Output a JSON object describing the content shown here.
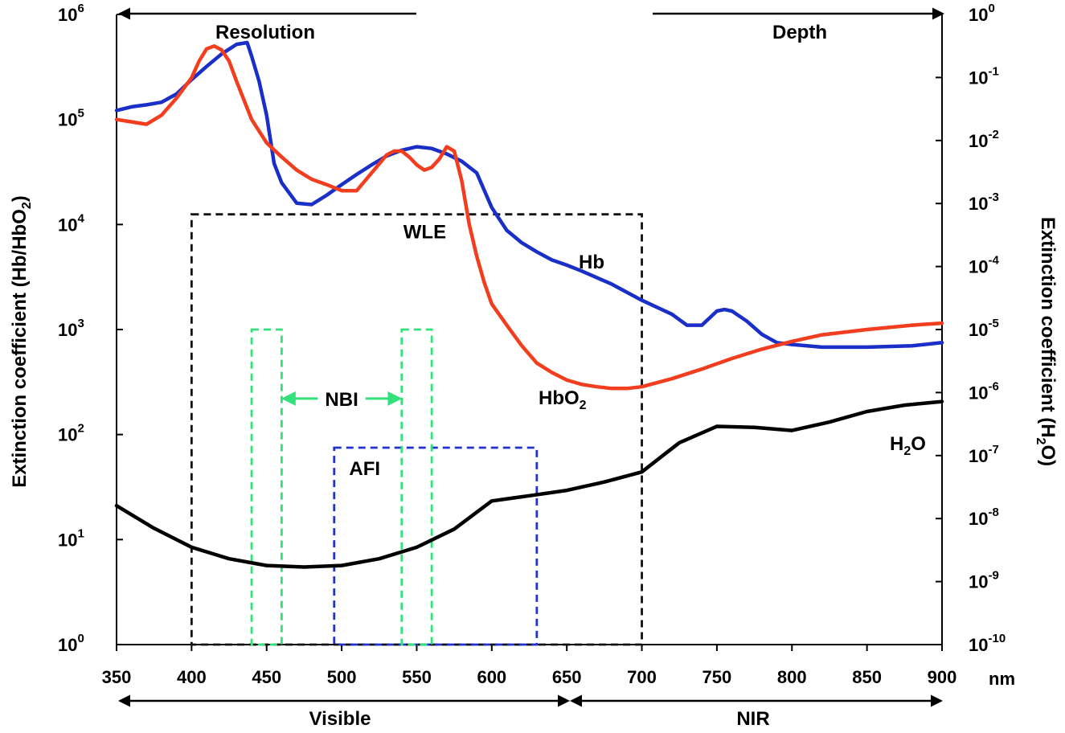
{
  "chart_data": {
    "type": "line",
    "x_unit": "nm",
    "x_ticks": [
      350,
      400,
      450,
      500,
      550,
      600,
      650,
      700,
      750,
      800,
      850,
      900
    ],
    "xlim": [
      350,
      900
    ],
    "y_left": {
      "label": "Extinction coefficient (Hb/HbO",
      "label_sub": "2",
      "label_end": ")",
      "scale": "log",
      "lim": [
        1,
        1000000
      ],
      "ticks": [
        {
          "base": "10",
          "exp": "0"
        },
        {
          "base": "10",
          "exp": "1"
        },
        {
          "base": "10",
          "exp": "2"
        },
        {
          "base": "10",
          "exp": "3"
        },
        {
          "base": "10",
          "exp": "4"
        },
        {
          "base": "10",
          "exp": "5"
        },
        {
          "base": "10",
          "exp": "6"
        }
      ]
    },
    "y_right": {
      "label": "Extinction coefficient (H",
      "label_sub": "2",
      "label_end": "O)",
      "scale": "log",
      "lim": [
        1e-10,
        1
      ],
      "ticks": [
        {
          "base": "10",
          "exp": "-10"
        },
        {
          "base": "10",
          "exp": "-9"
        },
        {
          "base": "10",
          "exp": "-8"
        },
        {
          "base": "10",
          "exp": "-7"
        },
        {
          "base": "10",
          "exp": "-6"
        },
        {
          "base": "10",
          "exp": "-5"
        },
        {
          "base": "10",
          "exp": "-4"
        },
        {
          "base": "10",
          "exp": "-3"
        },
        {
          "base": "10",
          "exp": "-2"
        },
        {
          "base": "10",
          "exp": "-1"
        },
        {
          "base": "10",
          "exp": "0"
        }
      ]
    },
    "series": [
      {
        "name": "Hb",
        "label_main": "Hb",
        "label_sub": "",
        "color": "#1a2ec8",
        "axis": "left",
        "x": [
          350,
          360,
          370,
          380,
          390,
          400,
          410,
          420,
          430,
          437,
          440,
          445,
          450,
          455,
          460,
          470,
          480,
          490,
          500,
          510,
          520,
          530,
          540,
          550,
          560,
          570,
          580,
          590,
          600,
          610,
          620,
          630,
          640,
          650,
          660,
          680,
          700,
          720,
          730,
          740,
          750,
          755,
          760,
          770,
          780,
          790,
          800,
          820,
          850,
          880,
          900
        ],
        "values": [
          122000,
          132000,
          138000,
          146000,
          175000,
          240000,
          320000,
          420000,
          520000,
          540000,
          400000,
          230000,
          110000,
          38000,
          25000,
          16000,
          15500,
          19000,
          24000,
          30000,
          37000,
          45000,
          51000,
          55000,
          53000,
          47000,
          40000,
          31000,
          14500,
          8800,
          6700,
          5500,
          4600,
          4100,
          3600,
          2700,
          1900,
          1400,
          1100,
          1100,
          1500,
          1550,
          1500,
          1200,
          900,
          750,
          720,
          680,
          680,
          700,
          750
        ]
      },
      {
        "name": "HbO2",
        "label_main": "HbO",
        "label_sub": "2",
        "color": "#f23d1e",
        "axis": "left",
        "x": [
          350,
          360,
          370,
          380,
          390,
          400,
          405,
          410,
          415,
          420,
          425,
          430,
          440,
          450,
          460,
          470,
          480,
          490,
          500,
          510,
          520,
          530,
          535,
          540,
          545,
          550,
          555,
          560,
          565,
          570,
          575,
          580,
          585,
          590,
          595,
          600,
          610,
          620,
          630,
          640,
          650,
          660,
          670,
          680,
          690,
          700,
          720,
          740,
          760,
          780,
          800,
          820,
          850,
          880,
          900
        ],
        "values": [
          100000,
          95000,
          90000,
          110000,
          160000,
          250000,
          360000,
          470000,
          500000,
          460000,
          360000,
          230000,
          100000,
          60000,
          44000,
          33000,
          27000,
          24000,
          21000,
          21000,
          31000,
          46000,
          50000,
          50000,
          44000,
          37000,
          33000,
          35000,
          42000,
          55000,
          50000,
          26000,
          10000,
          5000,
          2800,
          1750,
          1100,
          700,
          480,
          390,
          330,
          300,
          285,
          275,
          275,
          285,
          340,
          420,
          530,
          650,
          770,
          890,
          1000,
          1100,
          1150
        ]
      },
      {
        "name": "H2O",
        "label_main": "H",
        "label_sub": "2",
        "label_end": "O",
        "color": "#000000",
        "axis": "right",
        "x": [
          350,
          375,
          400,
          425,
          450,
          475,
          500,
          525,
          550,
          575,
          600,
          625,
          650,
          675,
          700,
          725,
          750,
          775,
          800,
          825,
          850,
          875,
          900
        ],
        "values": [
          1.6e-08,
          7e-09,
          3.5e-09,
          2.3e-09,
          1.8e-09,
          1.7e-09,
          1.8e-09,
          2.3e-09,
          3.5e-09,
          6.8e-09,
          1.9e-08,
          2.3e-08,
          2.8e-08,
          3.8e-08,
          5.5e-08,
          1.6e-07,
          2.9e-07,
          2.8e-07,
          2.5e-07,
          3.4e-07,
          5e-07,
          6.3e-07,
          7.2e-07
        ]
      }
    ],
    "boxes": [
      {
        "name": "WLE",
        "label": "WLE",
        "x0": 400,
        "x1": 700,
        "ytop": 12500,
        "color": "#111111"
      },
      {
        "name": "AFI",
        "label": "AFI",
        "x0": 495,
        "x1": 630,
        "ytop": 75,
        "color": "#2233cc"
      },
      {
        "name": "NBI-blue",
        "x0": 440,
        "x1": 460,
        "ytop": 1000,
        "color": "#33e07a"
      },
      {
        "name": "NBI-green",
        "x0": 540,
        "x1": 560,
        "ytop": 1000,
        "color": "#33e07a"
      }
    ],
    "nbi_label": "NBI",
    "nbi_color": "#33e07a",
    "annotations": {
      "top_left": "Resolution",
      "top_right": "Depth",
      "bottom_left": "Visible",
      "bottom_right": "NIR"
    }
  }
}
